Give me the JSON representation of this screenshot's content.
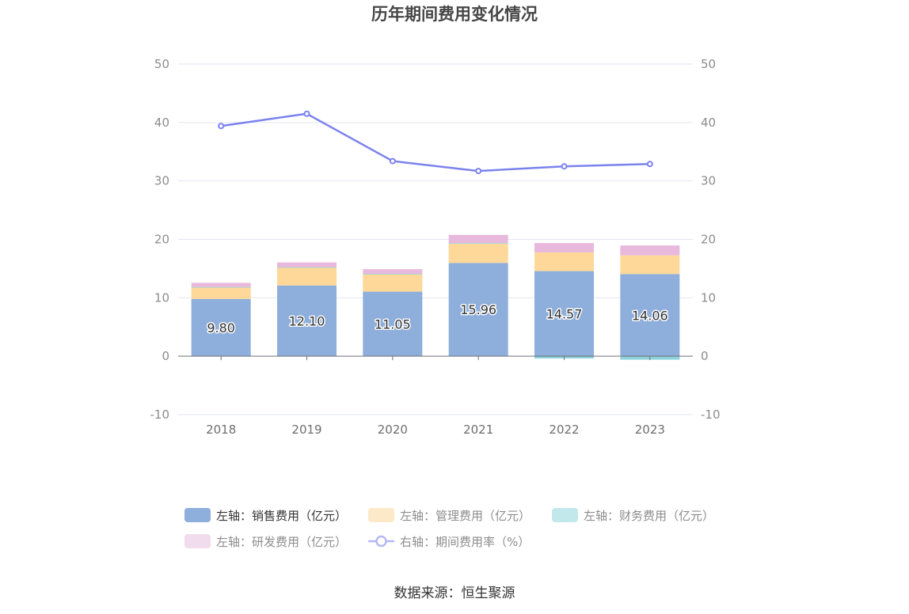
{
  "chart_data": {
    "type": "bar",
    "title": "历年期间费用变化情况",
    "categories": [
      "2018",
      "2019",
      "2020",
      "2021",
      "2022",
      "2023"
    ],
    "left_axis": {
      "min": -10,
      "max": 50,
      "ticks": [
        -10,
        0,
        10,
        20,
        30,
        40,
        50
      ]
    },
    "right_axis": {
      "min": -10,
      "max": 50,
      "ticks": [
        -10,
        0,
        10,
        20,
        30,
        40,
        50
      ]
    },
    "series": [
      {
        "name": "左轴：销售费用（亿元）",
        "kind": "bar",
        "stack": "a",
        "color": "#8eaedb",
        "values": [
          9.8,
          12.1,
          11.05,
          15.96,
          14.57,
          14.06
        ],
        "labels": [
          "9.80",
          "12.10",
          "11.05",
          "15.96",
          "14.57",
          "14.06"
        ]
      },
      {
        "name": "左轴：管理费用（亿元）",
        "kind": "bar",
        "stack": "a",
        "color": "#fdd899",
        "values": [
          2.0,
          3.1,
          3.0,
          3.3,
          3.2,
          3.2
        ]
      },
      {
        "name": "左轴：财务费用（亿元）",
        "kind": "bar",
        "stack": "a",
        "color": "#8ed3dc",
        "values": [
          0.05,
          0.05,
          0.05,
          0.1,
          -0.4,
          -0.6
        ]
      },
      {
        "name": "左轴：研发费用（亿元）",
        "kind": "bar",
        "stack": "a",
        "color": "#e8b9dc",
        "values": [
          0.7,
          0.8,
          0.8,
          1.4,
          1.6,
          1.7
        ]
      },
      {
        "name": "右轴：期间费用率（%）",
        "kind": "line",
        "axis": "right",
        "color": "#7b82ee",
        "values": [
          39.4,
          41.5,
          33.4,
          31.7,
          32.5,
          32.9
        ]
      }
    ],
    "legend": [
      {
        "label": "左轴：销售费用（亿元）",
        "color": "#8eaedb",
        "shape": "rect",
        "active": true
      },
      {
        "label": "左轴：管理费用（亿元）",
        "color": "#fde9c8",
        "shape": "rect",
        "active": false
      },
      {
        "label": "左轴：财务费用（亿元）",
        "color": "#c3e8ec",
        "shape": "rect",
        "active": false
      },
      {
        "label": "左轴：研发费用（亿元）",
        "color": "#f1dcee",
        "shape": "rect",
        "active": false
      },
      {
        "label": "右轴：期间费用率（%）",
        "color": "#b4b8f5",
        "shape": "line",
        "active": false
      }
    ],
    "legend_position": "bottom",
    "source": "数据来源：恒生聚源"
  }
}
